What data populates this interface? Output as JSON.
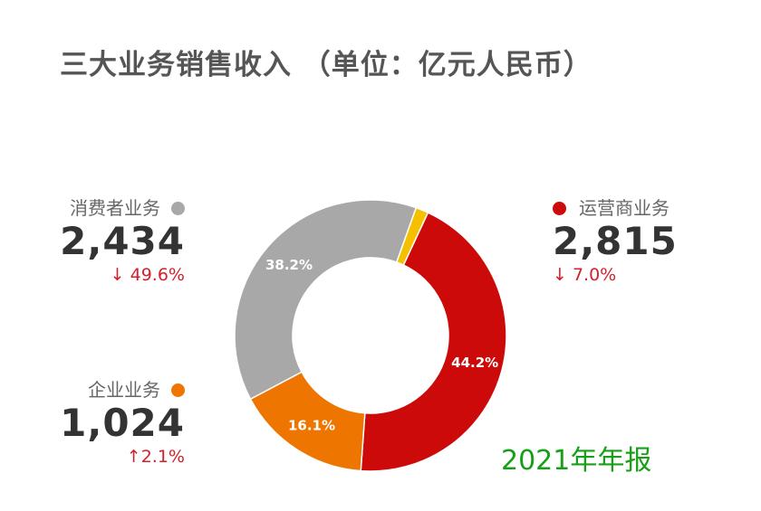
{
  "title": "三大业务销售收入 （单位：亿元人民币）",
  "report_tag": "2021年年报",
  "colors": {
    "carrier": "#cc0a0a",
    "enterprise": "#ee7600",
    "consumer": "#a8a8a8",
    "other": "#f5c000",
    "change_text": "#d3202c",
    "tag": "#16a016"
  },
  "segments": {
    "consumer": {
      "name": "消费者业务",
      "value": "2,434",
      "change": "↓ 49.6%"
    },
    "enterprise": {
      "name": "企业业务",
      "value": "1,024",
      "change": "↑2.1%"
    },
    "carrier": {
      "name": "运营商业务",
      "value": "2,815",
      "change": "↓ 7.0%"
    }
  },
  "chart_data": {
    "type": "pie",
    "donut": true,
    "unit": "亿元人民币",
    "slices": [
      {
        "name": "运营商业务",
        "value": 44.2,
        "label": "44.2%",
        "color": "#cc0a0a"
      },
      {
        "name": "企业业务",
        "value": 16.1,
        "label": "16.1%",
        "color": "#ee7600"
      },
      {
        "name": "消费者业务",
        "value": 38.2,
        "label": "38.2%",
        "color": "#a8a8a8"
      },
      {
        "name": "",
        "value": 1.5,
        "label": "",
        "color": "#f5c000"
      }
    ]
  }
}
